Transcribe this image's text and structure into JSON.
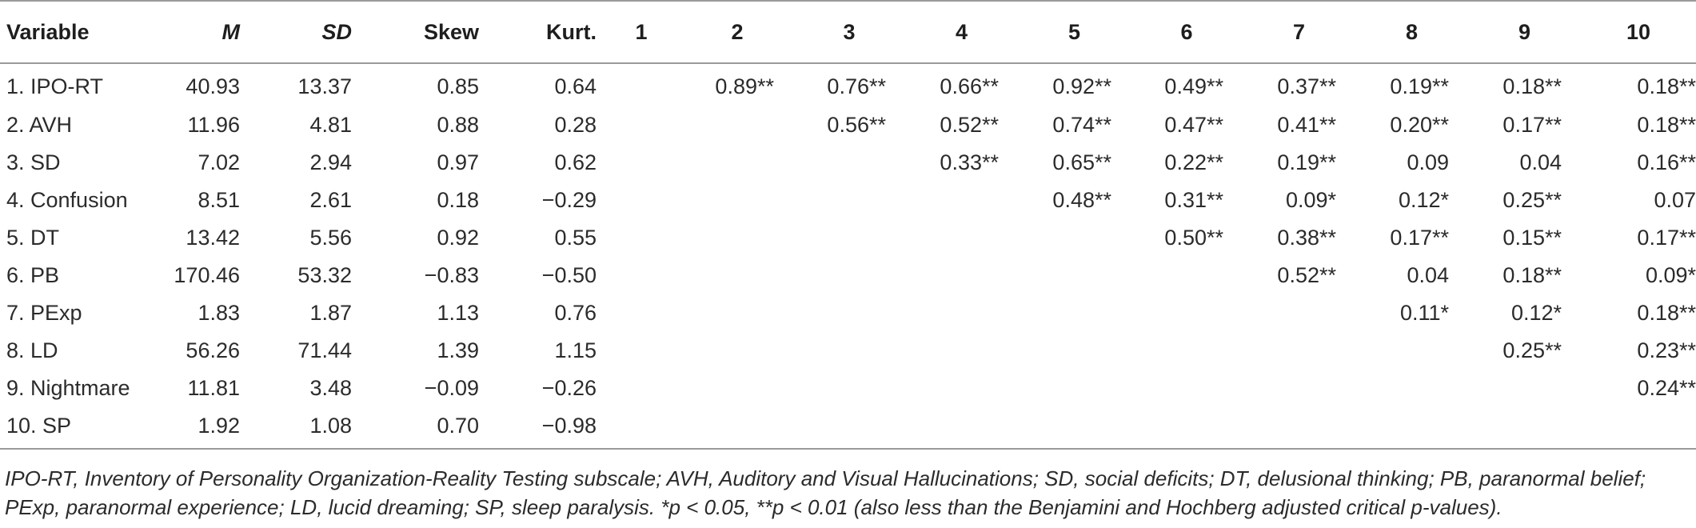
{
  "table": {
    "headers": [
      "Variable",
      "M",
      "SD",
      "Skew",
      "Kurt.",
      "1",
      "2",
      "3",
      "4",
      "5",
      "6",
      "7",
      "8",
      "9",
      "10"
    ],
    "rows": [
      [
        "1. IPO-RT",
        "40.93",
        "13.37",
        "0.85",
        "0.64",
        "",
        "0.89**",
        "0.76**",
        "0.66**",
        "0.92**",
        "0.49**",
        "0.37**",
        "0.19**",
        "0.18**",
        "0.18**"
      ],
      [
        "2. AVH",
        "11.96",
        "4.81",
        "0.88",
        "0.28",
        "",
        "",
        "0.56**",
        "0.52**",
        "0.74**",
        "0.47**",
        "0.41**",
        "0.20**",
        "0.17**",
        "0.18**"
      ],
      [
        "3. SD",
        "7.02",
        "2.94",
        "0.97",
        "0.62",
        "",
        "",
        "",
        "0.33**",
        "0.65**",
        "0.22**",
        "0.19**",
        "0.09",
        "0.04",
        "0.16**"
      ],
      [
        "4. Confusion",
        "8.51",
        "2.61",
        "0.18",
        "−0.29",
        "",
        "",
        "",
        "",
        "0.48**",
        "0.31**",
        "0.09*",
        "0.12*",
        "0.25**",
        "0.07"
      ],
      [
        "5. DT",
        "13.42",
        "5.56",
        "0.92",
        "0.55",
        "",
        "",
        "",
        "",
        "",
        "0.50**",
        "0.38**",
        "0.17**",
        "0.15**",
        "0.17**"
      ],
      [
        "6. PB",
        "170.46",
        "53.32",
        "−0.83",
        "−0.50",
        "",
        "",
        "",
        "",
        "",
        "",
        "0.52**",
        "0.04",
        "0.18**",
        "0.09*"
      ],
      [
        "7. PExp",
        "1.83",
        "1.87",
        "1.13",
        "0.76",
        "",
        "",
        "",
        "",
        "",
        "",
        "",
        "0.11*",
        "0.12*",
        "0.18**"
      ],
      [
        "8. LD",
        "56.26",
        "71.44",
        "1.39",
        "1.15",
        "",
        "",
        "",
        "",
        "",
        "",
        "",
        "",
        "0.25**",
        "0.23**"
      ],
      [
        "9. Nightmare",
        "11.81",
        "3.48",
        "−0.09",
        "−0.26",
        "",
        "",
        "",
        "",
        "",
        "",
        "",
        "",
        "",
        "0.24**"
      ],
      [
        "10. SP",
        "1.92",
        "1.08",
        "0.70",
        "−0.98",
        "",
        "",
        "",
        "",
        "",
        "",
        "",
        "",
        "",
        ""
      ]
    ]
  },
  "footnote": "IPO-RT, Inventory of Personality Organization-Reality Testing subscale; AVH, Auditory and Visual Hallucinations; SD, social deficits; DT, delusional thinking; PB, paranormal belief; PExp, paranormal experience; LD, lucid dreaming; SP, sleep paralysis. *p < 0.05, **p < 0.01 (also less than the Benjamini and Hochberg adjusted critical p-values)."
}
